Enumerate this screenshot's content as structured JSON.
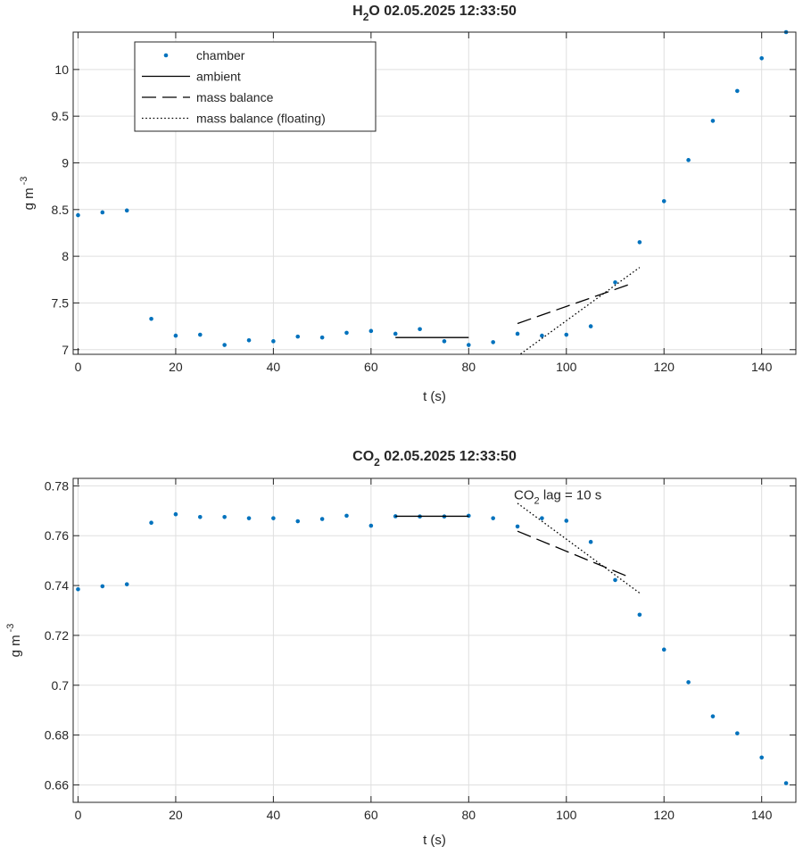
{
  "chart_data": [
    {
      "type": "scatter",
      "title_main": "H",
      "title_sub": "2",
      "title_rest": "O  02.05.2025 12:33:50",
      "xlabel": "t (s)",
      "ylabel_main": "g m",
      "ylabel_sup": "-3",
      "xlim": [
        -1,
        147
      ],
      "ylim": [
        6.95,
        10.4
      ],
      "xticks": [
        0,
        20,
        40,
        60,
        80,
        100,
        120,
        140
      ],
      "yticks": [
        7,
        7.5,
        8,
        8.5,
        9,
        9.5,
        10
      ],
      "grid": true,
      "legend_position": "top-left",
      "legend": [
        "chamber",
        "ambient",
        "mass balance",
        "mass balance (floating)"
      ],
      "annotation": null,
      "series": [
        {
          "name": "chamber",
          "style": "points",
          "color": "#0072BD",
          "x": [
            0,
            5,
            10,
            15,
            20,
            25,
            30,
            35,
            40,
            45,
            50,
            55,
            60,
            65,
            70,
            75,
            80,
            85,
            90,
            95,
            100,
            105,
            110,
            115,
            120,
            125,
            130,
            135,
            140,
            145
          ],
          "y": [
            8.44,
            8.47,
            8.49,
            7.33,
            7.15,
            7.16,
            7.05,
            7.1,
            7.09,
            7.14,
            7.13,
            7.18,
            7.2,
            7.17,
            7.22,
            7.09,
            7.05,
            7.08,
            7.17,
            7.15,
            7.16,
            7.25,
            7.72,
            8.15,
            8.59,
            9.03,
            9.45,
            9.77,
            10.12,
            10.4
          ]
        },
        {
          "name": "ambient",
          "style": "solid",
          "color": "#000000",
          "x": [
            65,
            80
          ],
          "y": [
            7.13,
            7.13
          ]
        },
        {
          "name": "mass balance",
          "style": "dashed",
          "color": "#000000",
          "x": [
            90,
            113
          ],
          "y": [
            7.28,
            7.7
          ]
        },
        {
          "name": "mass balance (floating)",
          "style": "dotted",
          "color": "#000000",
          "x": [
            90,
            115
          ],
          "y": [
            6.93,
            7.88
          ]
        }
      ]
    },
    {
      "type": "scatter",
      "title_main": "CO",
      "title_sub": "2",
      "title_rest": "  02.05.2025 12:33:50",
      "xlabel": "t (s)",
      "ylabel_main": "g m",
      "ylabel_sup": "-3",
      "xlim": [
        -1,
        147
      ],
      "ylim": [
        0.653,
        0.783
      ],
      "xticks": [
        0,
        20,
        40,
        60,
        80,
        100,
        120,
        140
      ],
      "yticks": [
        0.66,
        0.68,
        0.7,
        0.72,
        0.74,
        0.76,
        0.78
      ],
      "grid": true,
      "legend_position": null,
      "legend": [],
      "annotation": {
        "main": "CO",
        "sub": "2",
        "rest": " lag = 10 s",
        "x": 90,
        "y": 0.7738
      },
      "series": [
        {
          "name": "chamber",
          "style": "points",
          "color": "#0072BD",
          "x": [
            0,
            5,
            10,
            15,
            20,
            25,
            30,
            35,
            40,
            45,
            50,
            55,
            60,
            65,
            70,
            75,
            80,
            85,
            90,
            95,
            100,
            105,
            110,
            115,
            120,
            125,
            130,
            135,
            140,
            145
          ],
          "y": [
            0.7385,
            0.7397,
            0.7405,
            0.7652,
            0.7686,
            0.7675,
            0.7675,
            0.767,
            0.767,
            0.7658,
            0.7667,
            0.768,
            0.764,
            0.7678,
            0.7677,
            0.7677,
            0.768,
            0.767,
            0.7637,
            0.767,
            0.766,
            0.7575,
            0.7422,
            0.7283,
            0.7143,
            0.7012,
            0.6875,
            0.6807,
            0.671,
            0.6607
          ]
        },
        {
          "name": "ambient",
          "style": "solid",
          "color": "#000000",
          "x": [
            65,
            80
          ],
          "y": [
            0.7678,
            0.7678
          ]
        },
        {
          "name": "mass balance",
          "style": "dashed",
          "color": "#000000",
          "x": [
            90,
            113
          ],
          "y": [
            0.7618,
            0.7433
          ]
        },
        {
          "name": "mass balance (floating)",
          "style": "dotted",
          "color": "#000000",
          "x": [
            90,
            115
          ],
          "y": [
            0.773,
            0.737
          ]
        }
      ]
    }
  ]
}
